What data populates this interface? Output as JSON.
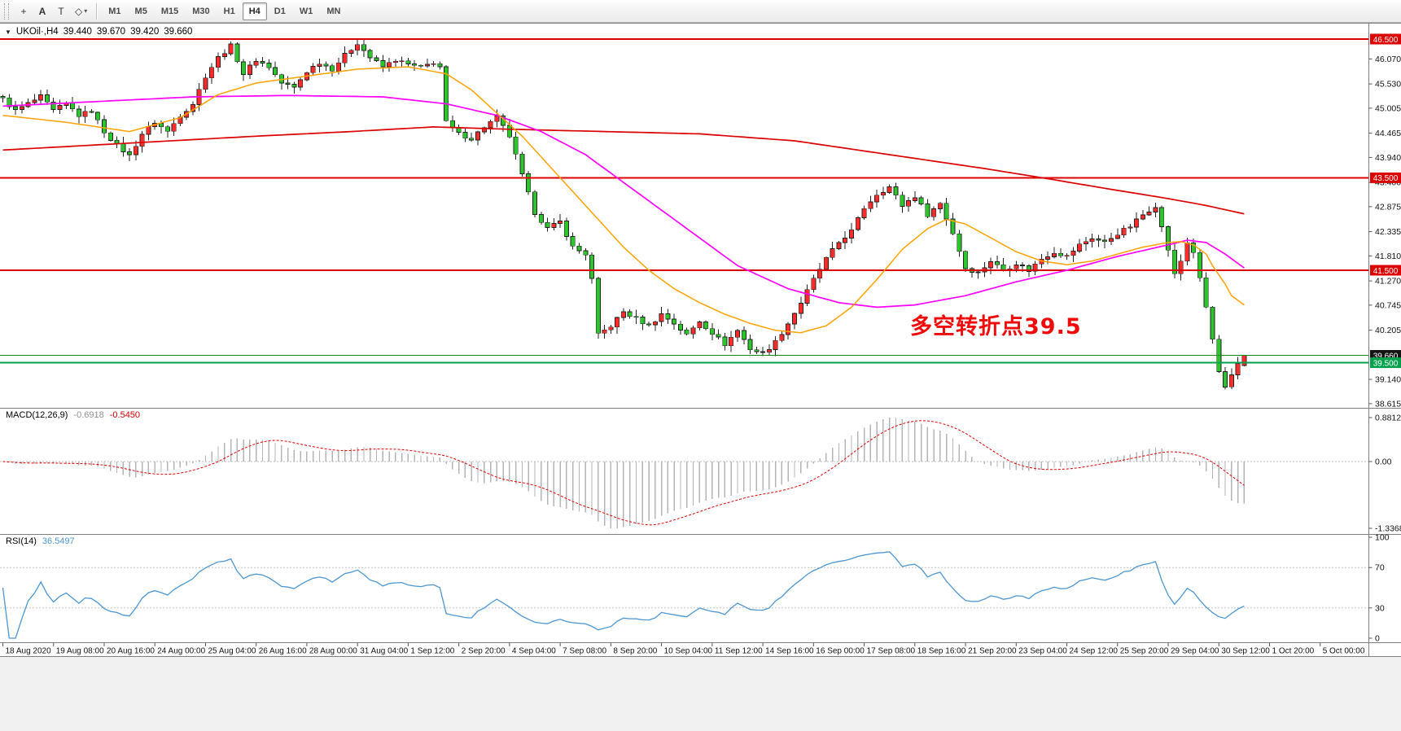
{
  "window": {
    "title_symbol": "UKOil·,H4",
    "collapse_arrow": "▼",
    "ohlc": {
      "open": "39.440",
      "high": "39.670",
      "low": "39.420",
      "close": "39.660"
    }
  },
  "toolbar": {
    "tools": [
      {
        "id": "crosshair",
        "glyph": "+"
      },
      {
        "id": "text",
        "glyph": "A"
      },
      {
        "id": "text-frame",
        "glyph": "T"
      },
      {
        "id": "shapes",
        "glyph": "◇",
        "caret": true
      }
    ],
    "timeframes": [
      "M1",
      "M5",
      "M15",
      "M30",
      "H1",
      "H4",
      "D1",
      "W1",
      "MN"
    ],
    "active_timeframe": "H4"
  },
  "indicators": {
    "macd": {
      "name": "MACD(12,26,9)",
      "value_main": "-0.6918",
      "value_signal": "-0.5450"
    },
    "rsi": {
      "name": "RSI(14)",
      "value": "36.5497"
    }
  },
  "annotation": {
    "text": "多空转折点39.5",
    "color": "#f00a0a"
  },
  "chart_data": {
    "type": "candlestick",
    "symbol": "UKOil",
    "timeframe": "H4",
    "last_ohlc": {
      "open": 39.44,
      "high": 39.67,
      "low": 39.42,
      "close": 39.66
    },
    "candle_colors": {
      "up": "#ff2a2a",
      "down": "#2cc52c",
      "outline": "#222222"
    },
    "price_axis": {
      "labels": [
        "46.070",
        "45.530",
        "45.005",
        "44.465",
        "43.940",
        "43.400",
        "42.875",
        "42.335",
        "41.810",
        "41.270",
        "40.745",
        "40.205",
        "39.140",
        "38.615"
      ],
      "badges": [
        {
          "text": "46.500",
          "price": 46.5,
          "color": "#dd0000"
        },
        {
          "text": "43.500",
          "price": 43.5,
          "color": "#dd0000"
        },
        {
          "text": "41.500",
          "price": 41.5,
          "color": "#dd0000"
        },
        {
          "text": "39.660",
          "price": 39.66,
          "color": "#141414"
        },
        {
          "text": "39.500",
          "price": 39.5,
          "color": "#00a14b"
        }
      ]
    },
    "horizontal_lines": [
      {
        "price": 46.5,
        "color": "#dd0000",
        "width": 2
      },
      {
        "price": 43.5,
        "color": "#dd0000",
        "width": 1.7
      },
      {
        "price": 41.5,
        "color": "#dd0000",
        "width": 1.7
      },
      {
        "price": 39.66,
        "color": "#128a12",
        "width": 1.2
      },
      {
        "price": 39.5,
        "color": "#00a14b",
        "width": 2
      }
    ],
    "candles": {
      "count": 197,
      "close_anchors": [
        [
          0,
          45.2
        ],
        [
          2,
          44.95
        ],
        [
          4,
          45.1
        ],
        [
          6,
          45.25
        ],
        [
          8,
          44.95
        ],
        [
          10,
          45.1
        ],
        [
          12,
          44.85
        ],
        [
          14,
          44.95
        ],
        [
          16,
          44.5
        ],
        [
          18,
          44.2
        ],
        [
          20,
          43.98
        ],
        [
          22,
          44.45
        ],
        [
          24,
          44.7
        ],
        [
          26,
          44.5
        ],
        [
          28,
          44.85
        ],
        [
          30,
          45.1
        ],
        [
          32,
          45.7
        ],
        [
          34,
          46.1
        ],
        [
          36,
          46.35
        ],
        [
          38,
          45.75
        ],
        [
          40,
          46.05
        ],
        [
          42,
          45.9
        ],
        [
          44,
          45.55
        ],
        [
          46,
          45.45
        ],
        [
          48,
          45.8
        ],
        [
          50,
          46.0
        ],
        [
          52,
          45.85
        ],
        [
          54,
          46.15
        ],
        [
          56,
          46.42
        ],
        [
          58,
          46.1
        ],
        [
          60,
          45.9
        ],
        [
          62,
          46.05
        ],
        [
          64,
          45.95
        ],
        [
          66,
          45.88
        ],
        [
          68,
          46.0
        ],
        [
          69,
          45.9
        ],
        [
          70,
          44.7
        ],
        [
          72,
          44.45
        ],
        [
          74,
          44.35
        ],
        [
          76,
          44.6
        ],
        [
          78,
          44.8
        ],
        [
          80,
          44.4
        ],
        [
          82,
          43.55
        ],
        [
          84,
          42.75
        ],
        [
          86,
          42.4
        ],
        [
          88,
          42.55
        ],
        [
          90,
          42.0
        ],
        [
          92,
          41.85
        ],
        [
          93,
          41.3
        ],
        [
          94,
          40.1
        ],
        [
          96,
          40.3
        ],
        [
          98,
          40.6
        ],
        [
          100,
          40.45
        ],
        [
          102,
          40.3
        ],
        [
          104,
          40.55
        ],
        [
          106,
          40.35
        ],
        [
          108,
          40.1
        ],
        [
          110,
          40.4
        ],
        [
          112,
          40.15
        ],
        [
          114,
          39.9
        ],
        [
          116,
          40.2
        ],
        [
          118,
          39.8
        ],
        [
          120,
          39.7
        ],
        [
          122,
          39.95
        ],
        [
          124,
          40.35
        ],
        [
          126,
          40.8
        ],
        [
          128,
          41.3
        ],
        [
          130,
          41.75
        ],
        [
          132,
          42.1
        ],
        [
          134,
          42.35
        ],
        [
          136,
          42.85
        ],
        [
          138,
          43.15
        ],
        [
          140,
          43.3
        ],
        [
          142,
          42.9
        ],
        [
          144,
          43.1
        ],
        [
          146,
          42.7
        ],
        [
          148,
          42.95
        ],
        [
          150,
          42.3
        ],
        [
          152,
          41.55
        ],
        [
          154,
          41.45
        ],
        [
          156,
          41.7
        ],
        [
          158,
          41.5
        ],
        [
          160,
          41.65
        ],
        [
          162,
          41.5
        ],
        [
          164,
          41.75
        ],
        [
          166,
          41.9
        ],
        [
          168,
          41.8
        ],
        [
          170,
          42.05
        ],
        [
          172,
          42.2
        ],
        [
          174,
          42.1
        ],
        [
          176,
          42.3
        ],
        [
          178,
          42.45
        ],
        [
          180,
          42.7
        ],
        [
          182,
          42.9
        ],
        [
          184,
          41.95
        ],
        [
          185,
          41.4
        ],
        [
          186,
          41.7
        ],
        [
          187,
          42.1
        ],
        [
          188,
          41.9
        ],
        [
          189,
          41.3
        ],
        [
          190,
          40.7
        ],
        [
          191,
          40.0
        ],
        [
          192,
          39.3
        ],
        [
          193,
          38.95
        ],
        [
          194,
          39.2
        ],
        [
          195,
          39.45
        ],
        [
          196,
          39.66
        ]
      ]
    },
    "moving_averages": [
      {
        "name": "slow-red",
        "color": "#dd0000",
        "width": 1.7,
        "points": [
          [
            0,
            44.1
          ],
          [
            20,
            44.25
          ],
          [
            40,
            44.4
          ],
          [
            55,
            44.5
          ],
          [
            68,
            44.6
          ],
          [
            80,
            44.55
          ],
          [
            95,
            44.5
          ],
          [
            110,
            44.45
          ],
          [
            125,
            44.3
          ],
          [
            135,
            44.1
          ],
          [
            145,
            43.9
          ],
          [
            155,
            43.7
          ],
          [
            165,
            43.48
          ],
          [
            175,
            43.25
          ],
          [
            184,
            43.05
          ],
          [
            190,
            42.9
          ],
          [
            196,
            42.72
          ]
        ]
      },
      {
        "name": "mid-magenta",
        "color": "#ff00ff",
        "width": 1.7,
        "points": [
          [
            0,
            45.05
          ],
          [
            15,
            45.15
          ],
          [
            30,
            45.25
          ],
          [
            45,
            45.28
          ],
          [
            60,
            45.25
          ],
          [
            70,
            45.1
          ],
          [
            78,
            44.85
          ],
          [
            85,
            44.5
          ],
          [
            92,
            44.0
          ],
          [
            100,
            43.2
          ],
          [
            108,
            42.4
          ],
          [
            116,
            41.6
          ],
          [
            124,
            41.1
          ],
          [
            132,
            40.8
          ],
          [
            138,
            40.7
          ],
          [
            144,
            40.75
          ],
          [
            152,
            40.95
          ],
          [
            160,
            41.25
          ],
          [
            168,
            41.5
          ],
          [
            176,
            41.8
          ],
          [
            184,
            42.05
          ],
          [
            187,
            42.15
          ],
          [
            190,
            42.1
          ],
          [
            193,
            41.85
          ],
          [
            196,
            41.55
          ]
        ]
      },
      {
        "name": "fast-orange",
        "color": "#ffa200",
        "width": 1.5,
        "points": [
          [
            0,
            44.85
          ],
          [
            10,
            44.7
          ],
          [
            20,
            44.5
          ],
          [
            28,
            44.8
          ],
          [
            34,
            45.3
          ],
          [
            40,
            45.55
          ],
          [
            48,
            45.7
          ],
          [
            56,
            45.85
          ],
          [
            64,
            45.9
          ],
          [
            70,
            45.75
          ],
          [
            74,
            45.4
          ],
          [
            78,
            44.9
          ],
          [
            82,
            44.4
          ],
          [
            86,
            43.8
          ],
          [
            90,
            43.2
          ],
          [
            94,
            42.6
          ],
          [
            98,
            42.0
          ],
          [
            102,
            41.5
          ],
          [
            106,
            41.1
          ],
          [
            110,
            40.8
          ],
          [
            114,
            40.55
          ],
          [
            118,
            40.35
          ],
          [
            122,
            40.2
          ],
          [
            126,
            40.15
          ],
          [
            130,
            40.3
          ],
          [
            134,
            40.7
          ],
          [
            138,
            41.3
          ],
          [
            142,
            41.95
          ],
          [
            146,
            42.4
          ],
          [
            149,
            42.6
          ],
          [
            152,
            42.5
          ],
          [
            156,
            42.2
          ],
          [
            160,
            41.9
          ],
          [
            164,
            41.7
          ],
          [
            168,
            41.62
          ],
          [
            172,
            41.7
          ],
          [
            176,
            41.85
          ],
          [
            180,
            42.0
          ],
          [
            184,
            42.1
          ],
          [
            186,
            42.12
          ],
          [
            188,
            42.05
          ],
          [
            190,
            41.85
          ],
          [
            191,
            41.6
          ],
          [
            193,
            41.2
          ],
          [
            194,
            40.95
          ],
          [
            196,
            40.75
          ]
        ]
      }
    ],
    "macd_axis": [
      {
        "text": "0.8812",
        "v": 0.8812
      },
      {
        "text": "0.00",
        "v": 0
      },
      {
        "text": "-1.3368",
        "v": -1.3368
      }
    ],
    "rsi_axis": [
      {
        "text": "100",
        "v": 100
      },
      {
        "text": "70",
        "v": 70
      },
      {
        "text": "30",
        "v": 30
      },
      {
        "text": "0",
        "v": 0
      }
    ],
    "rsi_levels": [
      70,
      30
    ],
    "time_labels": [
      "18 Aug 2020",
      "19 Aug 08:00",
      "20 Aug 16:00",
      "24 Aug 00:00",
      "25 Aug 04:00",
      "26 Aug 16:00",
      "28 Aug 00:00",
      "31 Aug 04:00",
      "1 Sep 12:00",
      "2 Sep 20:00",
      "4 Sep 04:00",
      "7 Sep 08:00",
      "8 Sep 20:00",
      "10 Sep 04:00",
      "11 Sep 12:00",
      "14 Sep 16:00",
      "16 Sep 00:00",
      "17 Sep 08:00",
      "18 Sep 16:00",
      "21 Sep 20:00",
      "23 Sep 04:00",
      "24 Sep 12:00",
      "25 Sep 20:00",
      "29 Sep 04:00",
      "30 Sep 12:00",
      "1 Oct 20:00",
      "5 Oct 00:00"
    ]
  }
}
